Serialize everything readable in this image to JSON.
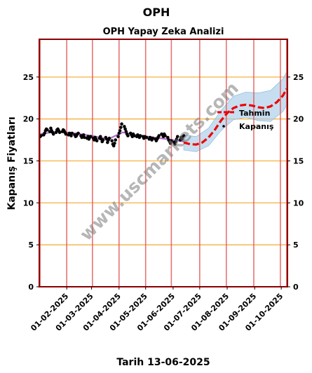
{
  "chart_data": {
    "type": "line",
    "title": "OPH",
    "subtitle": "OPH Yapay Zeka Analizi",
    "xlabel": "Tarih 13-06-2025",
    "ylabel": "Kapanış Fiyatları",
    "watermark": "www.uscmarkets.com",
    "ylim": [
      0,
      29.5
    ],
    "y_ticks": [
      0,
      5,
      10,
      15,
      20,
      25
    ],
    "x_range": [
      "2025-01-01",
      "2025-10-08"
    ],
    "x_ticks": [
      "2025-02-01",
      "2025-03-01",
      "2025-04-01",
      "2025-05-01",
      "2025-06-01",
      "2025-07-01",
      "2025-08-01",
      "2025-09-01",
      "2025-10-01"
    ],
    "x_tick_labels": [
      "01-02-2025",
      "01-03-2025",
      "01-04-2025",
      "01-05-2025",
      "01-06-2025",
      "01-07-2025",
      "01-08-2025",
      "01-09-2025",
      "01-10-2025"
    ],
    "vlines": [
      "2025-01-01",
      "2025-01-02",
      "2025-02-01",
      "2025-03-02",
      "2025-04-01",
      "2025-05-01",
      "2025-05-30",
      "2025-07-01",
      "2025-07-31",
      "2025-08-31",
      "2025-09-30",
      "2025-10-07"
    ],
    "grid": "horizontal",
    "legend_position": "right",
    "legend": {
      "forecast": "Tahmin",
      "close": "Kapanış"
    },
    "colors": {
      "close": "#000000",
      "fit": "#9a3fbf",
      "forecast": "#ee0000",
      "band": "#a9cde8",
      "grid": "#f5b041",
      "vline": "#e05050",
      "frame": "#8b0000"
    },
    "series": [
      {
        "name": "Kapanış",
        "kind": "scatter",
        "points": [
          [
            "2025-01-02",
            17.9
          ],
          [
            "2025-01-03",
            18.0
          ],
          [
            "2025-01-06",
            18.1
          ],
          [
            "2025-01-07",
            18.3
          ],
          [
            "2025-01-08",
            18.6
          ],
          [
            "2025-01-09",
            18.8
          ],
          [
            "2025-01-10",
            18.7
          ],
          [
            "2025-01-13",
            18.5
          ],
          [
            "2025-01-14",
            18.9
          ],
          [
            "2025-01-15",
            18.6
          ],
          [
            "2025-01-16",
            18.4
          ],
          [
            "2025-01-17",
            18.2
          ],
          [
            "2025-01-20",
            18.4
          ],
          [
            "2025-01-21",
            18.7
          ],
          [
            "2025-01-22",
            18.8
          ],
          [
            "2025-01-23",
            18.6
          ],
          [
            "2025-01-24",
            18.4
          ],
          [
            "2025-01-27",
            18.5
          ],
          [
            "2025-01-28",
            18.7
          ],
          [
            "2025-01-29",
            18.6
          ],
          [
            "2025-01-30",
            18.4
          ],
          [
            "2025-01-31",
            18.2
          ],
          [
            "2025-02-03",
            18.1
          ],
          [
            "2025-02-04",
            18.3
          ],
          [
            "2025-02-05",
            18.2
          ],
          [
            "2025-02-06",
            18.0
          ],
          [
            "2025-02-07",
            18.3
          ],
          [
            "2025-02-10",
            18.1
          ],
          [
            "2025-02-11",
            17.9
          ],
          [
            "2025-02-12",
            18.0
          ],
          [
            "2025-02-13",
            18.2
          ],
          [
            "2025-02-14",
            18.3
          ],
          [
            "2025-02-17",
            18.0
          ],
          [
            "2025-02-18",
            17.8
          ],
          [
            "2025-02-19",
            17.9
          ],
          [
            "2025-02-20",
            18.1
          ],
          [
            "2025-02-21",
            17.8
          ],
          [
            "2025-02-24",
            17.7
          ],
          [
            "2025-02-25",
            17.9
          ],
          [
            "2025-02-26",
            17.6
          ],
          [
            "2025-02-27",
            17.8
          ],
          [
            "2025-02-28",
            17.9
          ],
          [
            "2025-03-03",
            17.7
          ],
          [
            "2025-03-04",
            17.5
          ],
          [
            "2025-03-05",
            17.8
          ],
          [
            "2025-03-06",
            17.6
          ],
          [
            "2025-03-07",
            17.4
          ],
          [
            "2025-03-10",
            17.7
          ],
          [
            "2025-03-11",
            17.9
          ],
          [
            "2025-03-12",
            17.6
          ],
          [
            "2025-03-13",
            17.3
          ],
          [
            "2025-03-14",
            17.5
          ],
          [
            "2025-03-17",
            17.8
          ],
          [
            "2025-03-18",
            17.6
          ],
          [
            "2025-03-19",
            17.2
          ],
          [
            "2025-03-20",
            17.5
          ],
          [
            "2025-03-21",
            17.7
          ],
          [
            "2025-03-24",
            17.4
          ],
          [
            "2025-03-25",
            17.0
          ],
          [
            "2025-03-26",
            16.8
          ],
          [
            "2025-03-27",
            17.1
          ],
          [
            "2025-03-28",
            17.5
          ],
          [
            "2025-03-31",
            17.9
          ],
          [
            "2025-04-01",
            18.3
          ],
          [
            "2025-04-02",
            18.6
          ],
          [
            "2025-04-03",
            19.0
          ],
          [
            "2025-04-04",
            19.4
          ],
          [
            "2025-04-07",
            19.1
          ],
          [
            "2025-04-08",
            18.8
          ],
          [
            "2025-04-09",
            18.5
          ],
          [
            "2025-04-10",
            18.2
          ],
          [
            "2025-04-11",
            18.0
          ],
          [
            "2025-04-14",
            18.3
          ],
          [
            "2025-04-15",
            18.1
          ],
          [
            "2025-04-16",
            17.9
          ],
          [
            "2025-04-17",
            18.2
          ],
          [
            "2025-04-18",
            18.0
          ],
          [
            "2025-04-21",
            17.9
          ],
          [
            "2025-04-22",
            18.1
          ],
          [
            "2025-04-23",
            18.0
          ],
          [
            "2025-04-24",
            17.8
          ],
          [
            "2025-04-25",
            18.0
          ],
          [
            "2025-04-28",
            17.9
          ],
          [
            "2025-04-29",
            17.7
          ],
          [
            "2025-04-30",
            17.9
          ],
          [
            "2025-05-02",
            17.8
          ],
          [
            "2025-05-05",
            17.6
          ],
          [
            "2025-05-06",
            17.8
          ],
          [
            "2025-05-07",
            17.7
          ],
          [
            "2025-05-08",
            17.5
          ],
          [
            "2025-05-09",
            17.7
          ],
          [
            "2025-05-12",
            17.6
          ],
          [
            "2025-05-13",
            17.4
          ],
          [
            "2025-05-14",
            17.6
          ],
          [
            "2025-05-15",
            17.8
          ],
          [
            "2025-05-16",
            18.0
          ],
          [
            "2025-05-19",
            18.2
          ],
          [
            "2025-05-20",
            18.1
          ],
          [
            "2025-05-21",
            17.9
          ],
          [
            "2025-05-22",
            18.2
          ],
          [
            "2025-05-23",
            18.0
          ],
          [
            "2025-05-26",
            17.8
          ],
          [
            "2025-05-27",
            17.5
          ],
          [
            "2025-05-28",
            17.3
          ],
          [
            "2025-05-29",
            17.1
          ],
          [
            "2025-05-30",
            17.4
          ],
          [
            "2025-06-02",
            17.2
          ],
          [
            "2025-06-03",
            17.0
          ],
          [
            "2025-06-04",
            17.3
          ],
          [
            "2025-06-05",
            17.6
          ],
          [
            "2025-06-06",
            17.9
          ],
          [
            "2025-06-09",
            17.5
          ],
          [
            "2025-06-10",
            17.8
          ],
          [
            "2025-06-11",
            17.6
          ],
          [
            "2025-06-12",
            17.9
          ],
          [
            "2025-06-13",
            18.0
          ]
        ]
      },
      {
        "name": "",
        "kind": "fit",
        "points": [
          [
            "2025-01-02",
            18.2
          ],
          [
            "2025-01-20",
            18.5
          ],
          [
            "2025-02-10",
            18.3
          ],
          [
            "2025-03-01",
            18.0
          ],
          [
            "2025-03-20",
            17.6
          ],
          [
            "2025-04-05",
            18.4
          ],
          [
            "2025-04-20",
            18.1
          ],
          [
            "2025-05-10",
            17.8
          ],
          [
            "2025-05-25",
            17.6
          ],
          [
            "2025-06-13",
            17.3
          ]
        ]
      },
      {
        "name": "Tahmin",
        "kind": "forecast",
        "points": [
          [
            "2025-06-13",
            17.2
          ],
          [
            "2025-06-20",
            17.0
          ],
          [
            "2025-06-27",
            16.95
          ],
          [
            "2025-07-04",
            17.2
          ],
          [
            "2025-07-11",
            17.8
          ],
          [
            "2025-07-18",
            18.7
          ],
          [
            "2025-07-25",
            19.8
          ],
          [
            "2025-08-01",
            20.7
          ],
          [
            "2025-08-08",
            21.3
          ],
          [
            "2025-08-15",
            21.6
          ],
          [
            "2025-08-22",
            21.7
          ],
          [
            "2025-08-29",
            21.6
          ],
          [
            "2025-09-05",
            21.4
          ],
          [
            "2025-09-12",
            21.3
          ],
          [
            "2025-09-19",
            21.5
          ],
          [
            "2025-09-26",
            22.0
          ],
          [
            "2025-10-03",
            22.8
          ],
          [
            "2025-10-07",
            23.6
          ]
        ],
        "band": [
          [
            "2025-06-13",
            16.3,
            18.1
          ],
          [
            "2025-06-27",
            16.1,
            17.9
          ],
          [
            "2025-07-11",
            16.8,
            18.9
          ],
          [
            "2025-07-25",
            18.6,
            21.0
          ],
          [
            "2025-08-08",
            19.9,
            22.7
          ],
          [
            "2025-08-22",
            20.2,
            23.2
          ],
          [
            "2025-09-05",
            19.8,
            23.1
          ],
          [
            "2025-09-19",
            19.7,
            23.4
          ],
          [
            "2025-10-03",
            20.9,
            24.8
          ],
          [
            "2025-10-07",
            21.6,
            25.6
          ]
        ]
      }
    ]
  }
}
